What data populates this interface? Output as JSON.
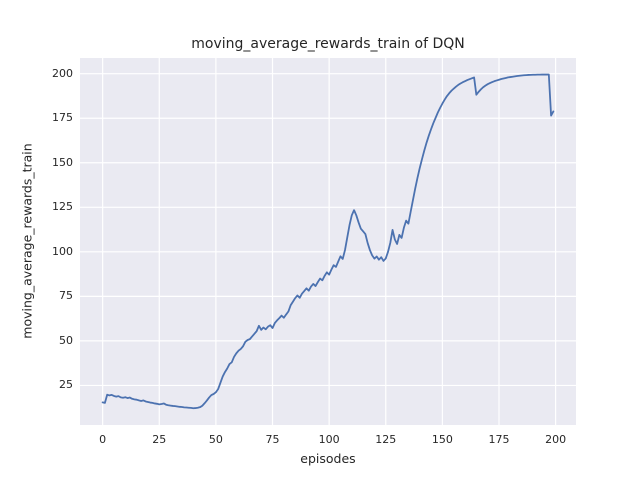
{
  "chart_data": {
    "type": "line",
    "title": "moving_average_rewards_train of DQN",
    "xlabel": "episodes",
    "ylabel": "moving_average_rewards_train",
    "xlim": [
      -10,
      209
    ],
    "ylim": [
      2.8,
      208.8
    ],
    "xticks": [
      0,
      25,
      50,
      75,
      100,
      125,
      150,
      175,
      200
    ],
    "yticks": [
      25,
      50,
      75,
      100,
      125,
      150,
      175,
      200
    ],
    "grid": true,
    "legend_position": "none",
    "colors": {
      "line": "#4C72B0",
      "plot_background": "#EAEAF2",
      "gridline": "#FFFFFF",
      "figure_background": "#FFFFFF",
      "text": "#262626"
    },
    "series": [
      {
        "name": "moving_average_rewards_train of DQN",
        "points": [
          [
            0,
            15.5
          ],
          [
            1,
            15.2
          ],
          [
            2,
            19.8
          ],
          [
            3,
            19.4
          ],
          [
            4,
            19.7
          ],
          [
            5,
            19.1
          ],
          [
            6,
            18.7
          ],
          [
            7,
            19.0
          ],
          [
            8,
            18.3
          ],
          [
            9,
            18.1
          ],
          [
            10,
            18.4
          ],
          [
            11,
            17.9
          ],
          [
            12,
            18.2
          ],
          [
            13,
            17.5
          ],
          [
            14,
            17.2
          ],
          [
            15,
            17.0
          ],
          [
            16,
            16.6
          ],
          [
            17,
            16.3
          ],
          [
            18,
            16.6
          ],
          [
            19,
            16.0
          ],
          [
            20,
            15.7
          ],
          [
            21,
            15.4
          ],
          [
            22,
            15.2
          ],
          [
            23,
            14.9
          ],
          [
            24,
            14.7
          ],
          [
            25,
            14.4
          ],
          [
            26,
            14.6
          ],
          [
            27,
            14.9
          ],
          [
            28,
            14.2
          ],
          [
            29,
            13.9
          ],
          [
            30,
            13.7
          ],
          [
            31,
            13.5
          ],
          [
            32,
            13.4
          ],
          [
            33,
            13.2
          ],
          [
            34,
            13.0
          ],
          [
            35,
            12.9
          ],
          [
            36,
            12.7
          ],
          [
            37,
            12.6
          ],
          [
            38,
            12.5
          ],
          [
            39,
            12.4
          ],
          [
            40,
            12.2
          ],
          [
            41,
            12.3
          ],
          [
            42,
            12.5
          ],
          [
            43,
            12.8
          ],
          [
            44,
            13.6
          ],
          [
            45,
            15.0
          ],
          [
            46,
            16.5
          ],
          [
            47,
            18.2
          ],
          [
            48,
            19.6
          ],
          [
            49,
            20.2
          ],
          [
            50,
            21.2
          ],
          [
            51,
            23.0
          ],
          [
            52,
            26.5
          ],
          [
            53,
            30.0
          ],
          [
            54,
            32.5
          ],
          [
            55,
            34.5
          ],
          [
            56,
            37.0
          ],
          [
            57,
            38.0
          ],
          [
            58,
            41.0
          ],
          [
            59,
            43.0
          ],
          [
            60,
            44.5
          ],
          [
            61,
            45.5
          ],
          [
            62,
            47.0
          ],
          [
            63,
            49.5
          ],
          [
            64,
            50.5
          ],
          [
            65,
            51.0
          ],
          [
            66,
            52.5
          ],
          [
            67,
            54.0
          ],
          [
            68,
            55.5
          ],
          [
            69,
            58.5
          ],
          [
            70,
            56.2
          ],
          [
            71,
            57.5
          ],
          [
            72,
            56.5
          ],
          [
            73,
            58.0
          ],
          [
            74,
            58.8
          ],
          [
            75,
            57.2
          ],
          [
            76,
            60.0
          ],
          [
            77,
            61.5
          ],
          [
            78,
            62.8
          ],
          [
            79,
            64.2
          ],
          [
            80,
            63.0
          ],
          [
            81,
            64.8
          ],
          [
            82,
            66.5
          ],
          [
            83,
            70.0
          ],
          [
            84,
            72.0
          ],
          [
            85,
            74.0
          ],
          [
            86,
            75.5
          ],
          [
            87,
            74.2
          ],
          [
            88,
            76.5
          ],
          [
            89,
            78.0
          ],
          [
            90,
            79.5
          ],
          [
            91,
            78.2
          ],
          [
            92,
            80.5
          ],
          [
            93,
            82.0
          ],
          [
            94,
            80.8
          ],
          [
            95,
            83.0
          ],
          [
            96,
            85.0
          ],
          [
            97,
            84.0
          ],
          [
            98,
            86.5
          ],
          [
            99,
            88.5
          ],
          [
            100,
            87.2
          ],
          [
            101,
            90.0
          ],
          [
            102,
            92.5
          ],
          [
            103,
            91.5
          ],
          [
            104,
            94.5
          ],
          [
            105,
            97.5
          ],
          [
            106,
            96.0
          ],
          [
            107,
            101.0
          ],
          [
            108,
            108.0
          ],
          [
            109,
            115.0
          ],
          [
            110,
            120.5
          ],
          [
            111,
            123.4
          ],
          [
            112,
            120.5
          ],
          [
            113,
            116.5
          ],
          [
            114,
            113.0
          ],
          [
            115,
            111.5
          ],
          [
            116,
            110.0
          ],
          [
            117,
            105.0
          ],
          [
            118,
            101.0
          ],
          [
            119,
            98.0
          ],
          [
            120,
            96.2
          ],
          [
            121,
            97.4
          ],
          [
            122,
            95.6
          ],
          [
            123,
            97.0
          ],
          [
            124,
            94.9
          ],
          [
            125,
            96.3
          ],
          [
            126,
            100.0
          ],
          [
            127,
            105.0
          ],
          [
            128,
            112.3
          ],
          [
            129,
            107.0
          ],
          [
            130,
            104.4
          ],
          [
            131,
            109.5
          ],
          [
            132,
            107.8
          ],
          [
            133,
            113.5
          ],
          [
            134,
            117.5
          ],
          [
            135,
            115.8
          ],
          [
            136,
            122.5
          ],
          [
            137,
            129.0
          ],
          [
            138,
            135.5
          ],
          [
            139,
            141.5
          ],
          [
            140,
            147.0
          ],
          [
            141,
            152.0
          ],
          [
            142,
            156.8
          ],
          [
            143,
            161.2
          ],
          [
            144,
            165.2
          ],
          [
            145,
            168.8
          ],
          [
            146,
            172.2
          ],
          [
            147,
            175.2
          ],
          [
            148,
            178.2
          ],
          [
            149,
            180.8
          ],
          [
            150,
            183.2
          ],
          [
            151,
            185.4
          ],
          [
            152,
            187.4
          ],
          [
            153,
            189.0
          ],
          [
            154,
            190.4
          ],
          [
            155,
            191.6
          ],
          [
            156,
            192.7
          ],
          [
            157,
            193.7
          ],
          [
            158,
            194.5
          ],
          [
            159,
            195.2
          ],
          [
            160,
            195.8
          ],
          [
            161,
            196.4
          ],
          [
            162,
            196.9
          ],
          [
            163,
            197.4
          ],
          [
            164,
            197.9
          ],
          [
            165,
            188.2
          ],
          [
            166,
            189.8
          ],
          [
            167,
            191.2
          ],
          [
            168,
            192.4
          ],
          [
            169,
            193.3
          ],
          [
            170,
            194.1
          ],
          [
            171,
            194.7
          ],
          [
            172,
            195.3
          ],
          [
            173,
            195.8
          ],
          [
            174,
            196.2
          ],
          [
            175,
            196.6
          ],
          [
            176,
            197.0
          ],
          [
            177,
            197.3
          ],
          [
            178,
            197.6
          ],
          [
            179,
            197.9
          ],
          [
            180,
            198.1
          ],
          [
            181,
            198.3
          ],
          [
            182,
            198.5
          ],
          [
            183,
            198.7
          ],
          [
            184,
            198.85
          ],
          [
            185,
            199.0
          ],
          [
            186,
            199.1
          ],
          [
            187,
            199.2
          ],
          [
            188,
            199.3
          ],
          [
            189,
            199.35
          ],
          [
            190,
            199.4
          ],
          [
            191,
            199.4
          ],
          [
            192,
            199.45
          ],
          [
            193,
            199.45
          ],
          [
            194,
            199.5
          ],
          [
            195,
            199.5
          ],
          [
            196,
            199.5
          ],
          [
            197,
            199.5
          ],
          [
            198,
            176.5
          ],
          [
            199,
            178.8
          ]
        ]
      }
    ]
  }
}
